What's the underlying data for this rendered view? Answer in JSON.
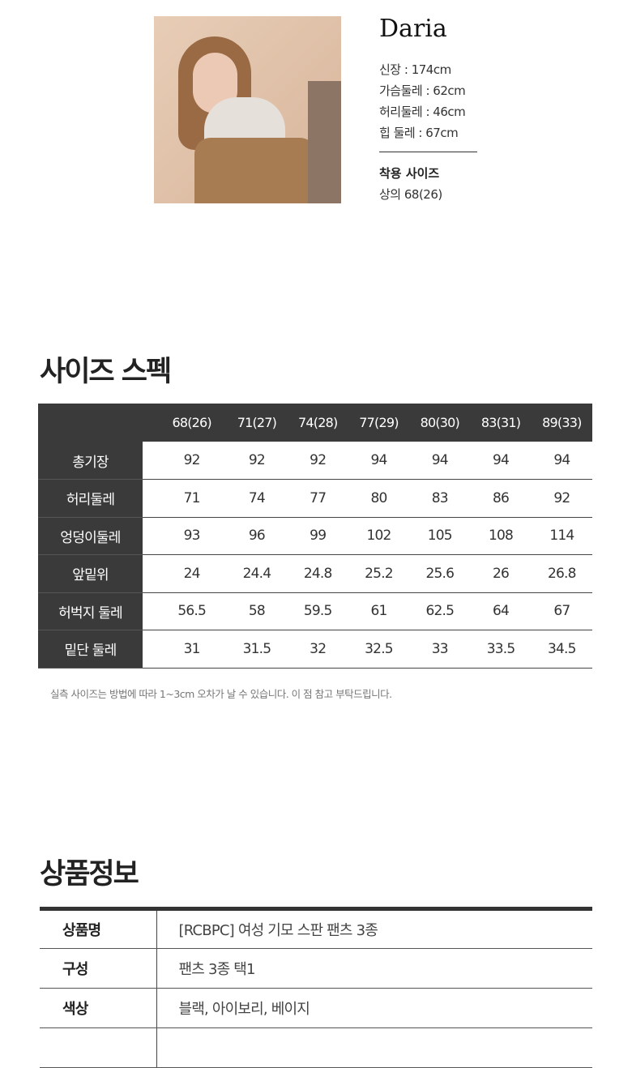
{
  "model": {
    "name": "Daria",
    "stats": [
      "신장 : 174cm",
      "가슴둘레 : 62cm",
      "허리둘레 : 46cm",
      "힙 둘레 : 67cm"
    ],
    "wear_size_title": "착용 사이즈",
    "wear_size_value": "상의 68(26)"
  },
  "size_spec": {
    "title": "사이즈 스펙",
    "columns": [
      "68(26)",
      "71(27)",
      "74(28)",
      "77(29)",
      "80(30)",
      "83(31)",
      "89(33)"
    ],
    "rows": [
      {
        "label": "총기장",
        "values": [
          "92",
          "92",
          "92",
          "94",
          "94",
          "94",
          "94"
        ]
      },
      {
        "label": "허리둘레",
        "values": [
          "71",
          "74",
          "77",
          "80",
          "83",
          "86",
          "92"
        ]
      },
      {
        "label": "엉덩이둘레",
        "values": [
          "93",
          "96",
          "99",
          "102",
          "105",
          "108",
          "114"
        ]
      },
      {
        "label": "앞밑위",
        "values": [
          "24",
          "24.4",
          "24.8",
          "25.2",
          "25.6",
          "26",
          "26.8"
        ]
      },
      {
        "label": "허벅지 둘레",
        "values": [
          "56.5",
          "58",
          "59.5",
          "61",
          "62.5",
          "64",
          "67"
        ]
      },
      {
        "label": "밑단 둘레",
        "values": [
          "31",
          "31.5",
          "32",
          "32.5",
          "33",
          "33.5",
          "34.5"
        ]
      }
    ],
    "note": "실측 사이즈는 방법에 따라 1~3cm 오차가 날 수 있습니다. 이 점 참고 부탁드립니다."
  },
  "product_info": {
    "title": "상품정보",
    "rows": [
      {
        "key": "상품명",
        "value": "[RCBPC] 여성 기모 스판 팬츠 3종"
      },
      {
        "key": "구성",
        "value": "팬츠 3종 택1"
      },
      {
        "key": "색상",
        "value": "블랙, 아이보리, 베이지"
      },
      {
        "key": "",
        "value": ""
      }
    ]
  }
}
